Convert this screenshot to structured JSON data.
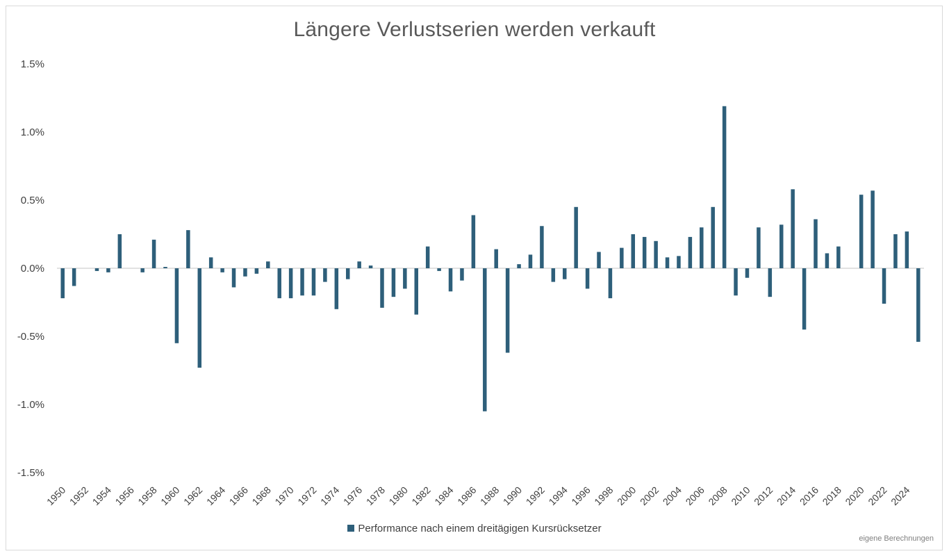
{
  "chart_data": {
    "type": "bar",
    "title": "Längere Verlustserien werden verkauft",
    "ylim": [
      -1.5,
      1.5
    ],
    "y_ticks": [
      "1.5%",
      "1.0%",
      "0.5%",
      "0.0%",
      "-0.5%",
      "-1.0%",
      "-1.5%"
    ],
    "x_tick_labels": [
      "1950",
      "1952",
      "1954",
      "1956",
      "1958",
      "1960",
      "1962",
      "1964",
      "1966",
      "1968",
      "1970",
      "1972",
      "1974",
      "1976",
      "1978",
      "1980",
      "1982",
      "1984",
      "1986",
      "1988",
      "1990",
      "1992",
      "1994",
      "1996",
      "1998",
      "2000",
      "2002",
      "2004",
      "2006",
      "2008",
      "2010",
      "2012",
      "2014",
      "2016",
      "2018",
      "2020",
      "2022",
      "2024"
    ],
    "categories": [
      1950,
      1951,
      1952,
      1953,
      1954,
      1955,
      1956,
      1957,
      1958,
      1959,
      1960,
      1961,
      1962,
      1963,
      1964,
      1965,
      1966,
      1967,
      1968,
      1969,
      1970,
      1971,
      1972,
      1973,
      1974,
      1975,
      1976,
      1977,
      1978,
      1979,
      1980,
      1981,
      1982,
      1983,
      1984,
      1985,
      1986,
      1987,
      1988,
      1989,
      1990,
      1991,
      1992,
      1993,
      1994,
      1995,
      1996,
      1997,
      1998,
      1999,
      2000,
      2001,
      2002,
      2003,
      2004,
      2005,
      2006,
      2007,
      2008,
      2009,
      2010,
      2011,
      2012,
      2013,
      2014,
      2015,
      2016,
      2017,
      2018,
      2019,
      2020,
      2021,
      2022,
      2023,
      2024,
      2025
    ],
    "series": [
      {
        "name": "Performance nach einem dreitägigen Kursrücksetzer",
        "color": "#2e5f7a",
        "values": [
          -0.22,
          -0.13,
          0.0,
          -0.02,
          -0.03,
          0.25,
          0.0,
          -0.03,
          0.21,
          0.01,
          -0.55,
          0.28,
          -0.73,
          0.08,
          -0.03,
          -0.14,
          -0.06,
          -0.04,
          0.05,
          -0.22,
          -0.22,
          -0.2,
          -0.2,
          -0.1,
          -0.3,
          -0.08,
          0.05,
          0.02,
          -0.29,
          -0.21,
          -0.15,
          -0.34,
          0.16,
          -0.02,
          -0.17,
          -0.09,
          0.39,
          -1.05,
          0.14,
          -0.62,
          0.03,
          0.1,
          0.31,
          -0.1,
          -0.08,
          0.45,
          -0.15,
          0.12,
          -0.22,
          0.15,
          0.25,
          0.23,
          0.2,
          0.08,
          0.09,
          0.23,
          0.3,
          0.45,
          1.19,
          -0.2,
          -0.07,
          0.3,
          -0.21,
          0.32,
          0.58,
          -0.45,
          0.36,
          0.11,
          0.16,
          0.0,
          0.54,
          0.57,
          -0.26,
          0.25,
          0.27,
          -0.54
        ]
      }
    ],
    "grid": false,
    "legend": "bottom",
    "annotation": "eigene Berechnungen"
  }
}
